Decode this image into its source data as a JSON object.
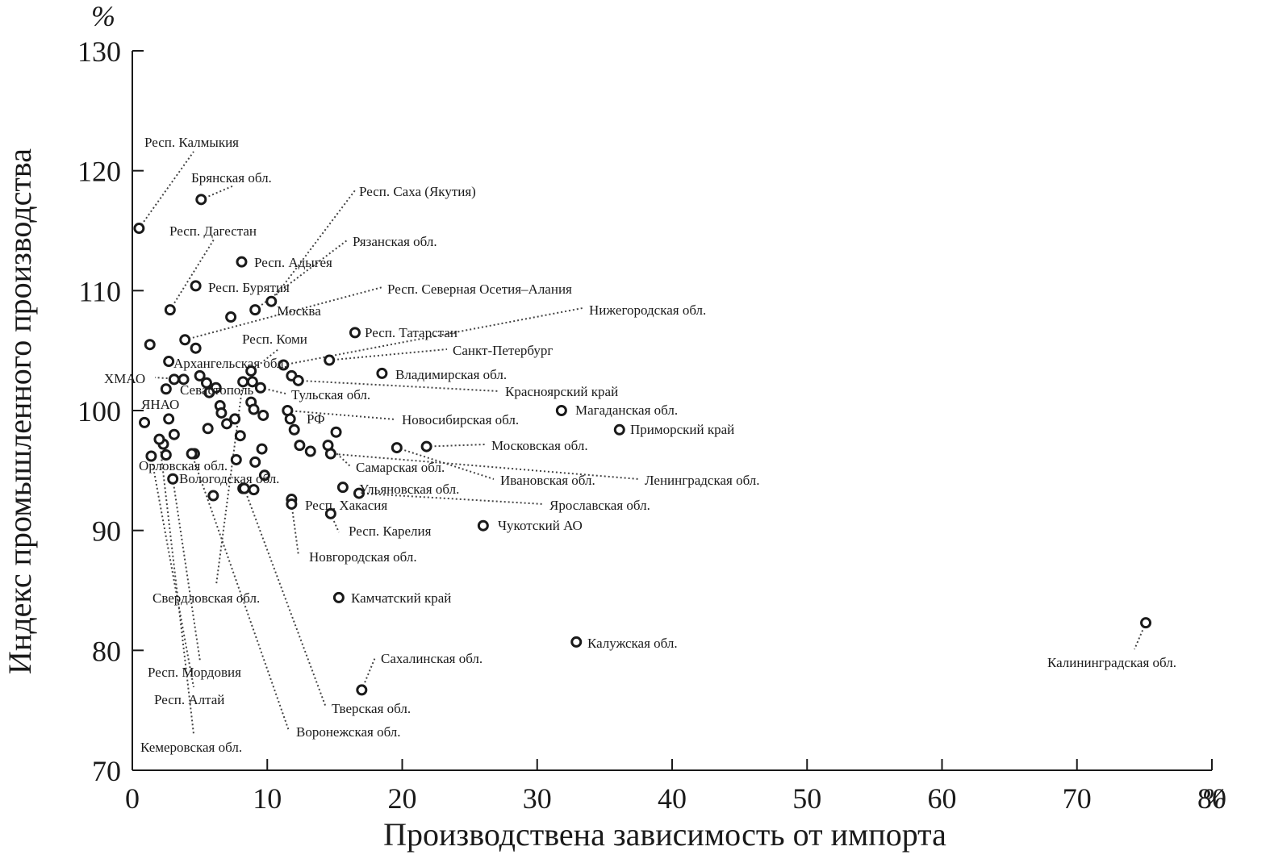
{
  "chart_data": {
    "type": "scatter",
    "title": "",
    "xlabel": "Производствена зависимость от импорта",
    "ylabel": "Индекс промышленного производства",
    "x_unit": "%",
    "y_unit": "%",
    "xlim": [
      0,
      80
    ],
    "ylim": [
      70,
      130
    ],
    "xticks": [
      0,
      10,
      20,
      30,
      40,
      50,
      60,
      70,
      80
    ],
    "xtick_labels": [
      "0",
      "10",
      "20",
      "30",
      "40",
      "50",
      "60",
      "70",
      "80"
    ],
    "yticks": [
      70,
      80,
      90,
      100,
      110,
      120,
      130
    ],
    "ytick_labels": [
      "70",
      "80",
      "90",
      "100",
      "110",
      "120",
      "130"
    ],
    "grid": false,
    "labeled_points": [
      {
        "label": "Респ. Калмыкия",
        "x": 0.5,
        "y": 115.2
      },
      {
        "label": "Брянская обл.",
        "x": 5.1,
        "y": 117.6
      },
      {
        "label": "Респ. Саха (Якутия)",
        "x": 10.3,
        "y": 109.1
      },
      {
        "label": "Респ. Дагестан",
        "x": 2.8,
        "y": 108.4
      },
      {
        "label": "Рязанская обл.",
        "x": 9.1,
        "y": 108.4
      },
      {
        "label": "Респ. Адыгея",
        "x": 8.1,
        "y": 112.4
      },
      {
        "label": "Респ. Бурятия",
        "x": 4.7,
        "y": 110.4
      },
      {
        "label": "Респ. Северная Осетия–Алания",
        "x": 3.9,
        "y": 105.9
      },
      {
        "label": "Москва",
        "x": 7.3,
        "y": 107.8
      },
      {
        "label": "Нижегородская обл.",
        "x": 11.2,
        "y": 103.8
      },
      {
        "label": "Респ. Татарстан",
        "x": 16.5,
        "y": 106.5
      },
      {
        "label": "Респ. Коми",
        "x": 8.8,
        "y": 103.3
      },
      {
        "label": "Санкт-Петербург",
        "x": 14.6,
        "y": 104.2
      },
      {
        "label": "Архангельская обл.",
        "x": 2.7,
        "y": 104.1
      },
      {
        "label": "Владимирская обл.",
        "x": 18.5,
        "y": 103.1
      },
      {
        "label": "ХМАО",
        "x": 3.8,
        "y": 102.6
      },
      {
        "label": "Севастополь",
        "x": 2.5,
        "y": 101.8
      },
      {
        "label": "Красноярский край",
        "x": 12.3,
        "y": 102.5
      },
      {
        "label": "Тульская обл.",
        "x": 9.5,
        "y": 101.9
      },
      {
        "label": "Магаданская обл.",
        "x": 31.8,
        "y": 100.0
      },
      {
        "label": "ЯНАО",
        "x": 0.9,
        "y": 99.0
      },
      {
        "label": "Новосибирская обл.",
        "x": 11.5,
        "y": 100.0
      },
      {
        "label": "РФ",
        "x": 9.7,
        "y": 99.6
      },
      {
        "label": "Приморский край",
        "x": 36.1,
        "y": 98.4
      },
      {
        "label": "Московская обл.",
        "x": 21.8,
        "y": 97.0
      },
      {
        "label": "Ленинградская обл.",
        "x": 14.7,
        "y": 96.4
      },
      {
        "label": "Самарская обл.",
        "x": 14.5,
        "y": 97.1
      },
      {
        "label": "Орловская обл.",
        "x": 3.1,
        "y": 98.0
      },
      {
        "label": "Ивановская обл.",
        "x": 19.6,
        "y": 96.9
      },
      {
        "label": "Вологодская обл.",
        "x": 9.8,
        "y": 94.6
      },
      {
        "label": "Ульяновская обл.",
        "x": 15.6,
        "y": 93.6
      },
      {
        "label": "Ярославская обл.",
        "x": 16.8,
        "y": 93.1
      },
      {
        "label": "Респ. Хакасия",
        "x": 11.8,
        "y": 92.6
      },
      {
        "label": "Чукотский АО",
        "x": 26.0,
        "y": 90.4
      },
      {
        "label": "Респ. Карелия",
        "x": 14.7,
        "y": 91.4
      },
      {
        "label": "Новгородская обл.",
        "x": 11.8,
        "y": 92.2
      },
      {
        "label": "Свердловская обл.",
        "x": 8.2,
        "y": 102.4
      },
      {
        "label": "Камчатский край",
        "x": 15.3,
        "y": 84.4
      },
      {
        "label": "Калужская обл.",
        "x": 32.9,
        "y": 80.7
      },
      {
        "label": "Калининградская обл.",
        "x": 75.1,
        "y": 82.3
      },
      {
        "label": "Сахалинская обл.",
        "x": 17.0,
        "y": 76.7
      },
      {
        "label": "Респ. Мордовия",
        "x": 3.0,
        "y": 94.3
      },
      {
        "label": "Респ. Алтай",
        "x": 1.4,
        "y": 96.2
      },
      {
        "label": "Тверская обл.",
        "x": 8.3,
        "y": 93.5
      },
      {
        "label": "Воронежская обл.",
        "x": 4.4,
        "y": 96.4
      },
      {
        "label": "Кемеровская обл.",
        "x": 2.0,
        "y": 97.6
      }
    ],
    "unlabeled_points": [
      {
        "x": 1.3,
        "y": 105.5
      },
      {
        "x": 4.7,
        "y": 105.2
      },
      {
        "x": 3.1,
        "y": 102.6
      },
      {
        "x": 5.0,
        "y": 102.9
      },
      {
        "x": 5.5,
        "y": 102.3
      },
      {
        "x": 6.2,
        "y": 101.9
      },
      {
        "x": 5.7,
        "y": 101.5
      },
      {
        "x": 8.9,
        "y": 102.4
      },
      {
        "x": 11.8,
        "y": 102.9
      },
      {
        "x": 6.5,
        "y": 100.4
      },
      {
        "x": 6.6,
        "y": 99.8
      },
      {
        "x": 7.6,
        "y": 99.3
      },
      {
        "x": 8.8,
        "y": 100.7
      },
      {
        "x": 9.0,
        "y": 100.1
      },
      {
        "x": 2.7,
        "y": 99.3
      },
      {
        "x": 5.6,
        "y": 98.5
      },
      {
        "x": 7.0,
        "y": 98.9
      },
      {
        "x": 8.0,
        "y": 97.9
      },
      {
        "x": 11.7,
        "y": 99.3
      },
      {
        "x": 12.0,
        "y": 98.4
      },
      {
        "x": 15.1,
        "y": 98.2
      },
      {
        "x": 2.3,
        "y": 97.2
      },
      {
        "x": 9.6,
        "y": 96.8
      },
      {
        "x": 12.4,
        "y": 97.1
      },
      {
        "x": 13.2,
        "y": 96.6
      },
      {
        "x": 2.5,
        "y": 96.3
      },
      {
        "x": 4.6,
        "y": 96.4
      },
      {
        "x": 7.7,
        "y": 95.9
      },
      {
        "x": 9.1,
        "y": 95.7
      },
      {
        "x": 8.2,
        "y": 93.5
      },
      {
        "x": 9.0,
        "y": 93.4
      },
      {
        "x": 6.0,
        "y": 92.9
      }
    ]
  }
}
